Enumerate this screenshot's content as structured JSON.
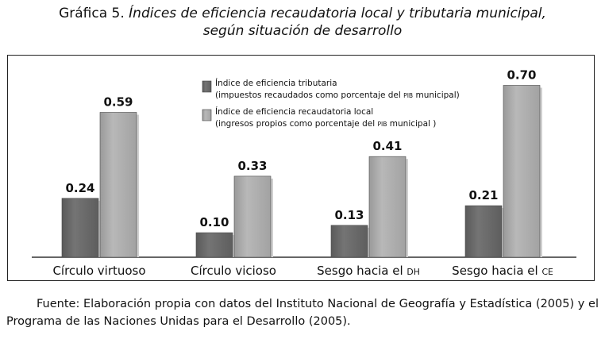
{
  "title": {
    "lead": "Gráfica 5.",
    "italic_line1": "Índices de eficiencia recaudatoria local y tributaria municipal,",
    "italic_line2": "según situación de desarrollo"
  },
  "chart_data": {
    "type": "bar",
    "categories": [
      "Círculo virtuoso",
      "Círculo vicioso",
      "Sesgo hacia el DH",
      "Sesgo hacia el CE"
    ],
    "series": [
      {
        "name": "Índice de eficiencia tributaria\n(impuestos recaudados como porcentaje del PIB municipal)",
        "values": [
          0.24,
          0.1,
          0.13,
          0.21
        ],
        "labels": [
          "0.24",
          "0.10",
          "0.13",
          "0.21"
        ],
        "color": "#6f6f6f"
      },
      {
        "name": "Índice de eficiencia recaudatoria local\n(ingresos propios como porcentaje del PIB municipal )",
        "values": [
          0.59,
          0.33,
          0.41,
          0.7
        ],
        "labels": [
          "0.59",
          "0.33",
          "0.41",
          "0.70"
        ],
        "color": "#b3b3b3"
      }
    ],
    "ylim": [
      0,
      0.75
    ],
    "grid": false,
    "legend_position": "top-center"
  },
  "source": "Fuente: Elaboración propia con datos del Instituto Nacional de Geografía y Estadística (2005) y el Programa de las Naciones Unidas para el Desarrollo (2005)."
}
